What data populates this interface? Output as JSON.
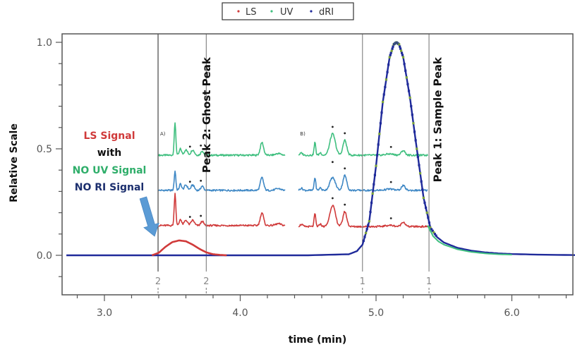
{
  "chart_data": {
    "type": "line",
    "title": "",
    "xlabel": "time (min)",
    "ylabel": "Relative Scale",
    "xlim": [
      2.72,
      6.48
    ],
    "ylim": [
      -0.15,
      1.04
    ],
    "x_ticks": [
      3.0,
      4.0,
      5.0,
      6.0
    ],
    "x_tick_labels": [
      "3.0",
      "4.0",
      "5.0",
      "6.0"
    ],
    "x_minor_step": 0.2,
    "y_ticks": [
      0.0,
      0.5,
      1.0
    ],
    "y_tick_labels": [
      "0.0",
      "0.5",
      "1.0"
    ],
    "y_minor_step": 0.1,
    "grid": false,
    "legend": {
      "position": "top-center",
      "entries": [
        {
          "name": "LS",
          "color": "#d03a3a"
        },
        {
          "name": "UV",
          "color": "#3fbf7f"
        },
        {
          "name": "dRI",
          "color": "#1f2a9a"
        }
      ]
    },
    "series": [
      {
        "name": "dRI",
        "color": "#1f2a9a",
        "x": [
          2.72,
          3.4,
          3.8,
          4.5,
          4.8,
          4.86,
          4.9,
          4.95,
          5.0,
          5.05,
          5.1,
          5.13,
          5.15,
          5.17,
          5.2,
          5.25,
          5.3,
          5.35,
          5.4,
          5.45,
          5.5,
          5.6,
          5.7,
          5.8,
          5.9,
          6.0,
          6.2,
          6.48
        ],
        "y": [
          0.0,
          0.0,
          0.0,
          0.0,
          0.005,
          0.02,
          0.05,
          0.16,
          0.42,
          0.72,
          0.93,
          0.99,
          1.0,
          0.99,
          0.93,
          0.74,
          0.5,
          0.27,
          0.13,
          0.085,
          0.06,
          0.035,
          0.022,
          0.014,
          0.009,
          0.006,
          0.003,
          0.001
        ]
      },
      {
        "name": "UV",
        "color": "#3fbf7f",
        "x": [
          5.38,
          5.42,
          5.46,
          5.5,
          5.6,
          5.7,
          5.8,
          5.9,
          6.0
        ],
        "y": [
          0.14,
          0.09,
          0.065,
          0.05,
          0.028,
          0.016,
          0.009,
          0.005,
          0.003
        ]
      },
      {
        "name": "LS",
        "color": "#d03a3a",
        "x": [
          3.35,
          3.4,
          3.45,
          3.5,
          3.55,
          3.6,
          3.65,
          3.7,
          3.75,
          3.8,
          3.85,
          3.9
        ],
        "y": [
          0.0,
          0.012,
          0.04,
          0.062,
          0.07,
          0.066,
          0.05,
          0.03,
          0.014,
          0.005,
          0.002,
          0.0
        ]
      }
    ],
    "vertical_markers": [
      {
        "x": 3.395,
        "label": "2",
        "style": "solid",
        "color": "#444"
      },
      {
        "x": 3.75,
        "label": "2",
        "style": "solid",
        "color": "#888"
      },
      {
        "x": 4.9,
        "label": "1",
        "style": "solid",
        "color": "#888"
      },
      {
        "x": 5.39,
        "label": "1",
        "style": "solid",
        "color": "#888"
      }
    ],
    "peak_labels": [
      {
        "text": "Peak 2: Ghost Peak",
        "x": 3.78,
        "y_top": 0.93
      },
      {
        "text": "Peak 1: Sample Peak",
        "x": 5.48,
        "y_top": 0.93
      }
    ],
    "insets": [
      {
        "label": "A)",
        "x_range": [
          3.4,
          4.33
        ],
        "traces": [
          {
            "name": "UV",
            "color": "#3fbf7f",
            "offset": 0.47
          },
          {
            "name": "dRI",
            "color": "#3f88c5",
            "offset": 0.305
          },
          {
            "name": "LS",
            "color": "#d03a3a",
            "offset": 0.14
          }
        ],
        "peaks": [
          {
            "x": 3.52,
            "h": 0.15,
            "w": 0.006
          },
          {
            "x": 3.56,
            "h": 0.03,
            "w": 0.008
          },
          {
            "x": 3.6,
            "h": 0.025,
            "w": 0.012
          },
          {
            "x": 3.65,
            "h": 0.025,
            "w": 0.012
          },
          {
            "x": 3.72,
            "h": 0.02,
            "w": 0.01
          },
          {
            "x": 4.16,
            "h": 0.06,
            "w": 0.012
          },
          {
            "x": 4.28,
            "h": 0.008,
            "w": 0.02
          }
        ],
        "asterisks": [
          3.63,
          3.71
        ]
      },
      {
        "label": "B)",
        "x_range": [
          4.43,
          5.38
        ],
        "traces": [
          {
            "name": "UV",
            "color": "#3fbf7f",
            "offset": 0.47
          },
          {
            "name": "dRI",
            "color": "#3f88c5",
            "offset": 0.305
          },
          {
            "name": "LS",
            "color": "#d03a3a",
            "offset": 0.135
          }
        ],
        "peaks": [
          {
            "x": 4.45,
            "h": 0.01,
            "w": 0.01
          },
          {
            "x": 4.55,
            "h": 0.06,
            "w": 0.006
          },
          {
            "x": 4.59,
            "h": 0.012,
            "w": 0.008
          },
          {
            "x": 4.68,
            "h": 0.1,
            "w": 0.02
          },
          {
            "x": 4.77,
            "h": 0.07,
            "w": 0.014
          },
          {
            "x": 5.1,
            "h": 0.006,
            "w": 0.03
          },
          {
            "x": 5.2,
            "h": 0.022,
            "w": 0.014
          }
        ],
        "asterisks": [
          4.68,
          4.77,
          5.11
        ]
      }
    ],
    "annotations": [
      {
        "text": "LS Signal",
        "color": "#d03a3a"
      },
      {
        "text": "with",
        "color": "#111111"
      },
      {
        "text": "NO UV Signal",
        "color": "#2fae6a"
      },
      {
        "text": "NO RI Signal",
        "color": "#1c2f6e"
      }
    ],
    "arrow": {
      "color": "#5b9bd5",
      "from": [
        2.74,
        0.27
      ],
      "to": [
        3.38,
        0.07
      ]
    }
  }
}
